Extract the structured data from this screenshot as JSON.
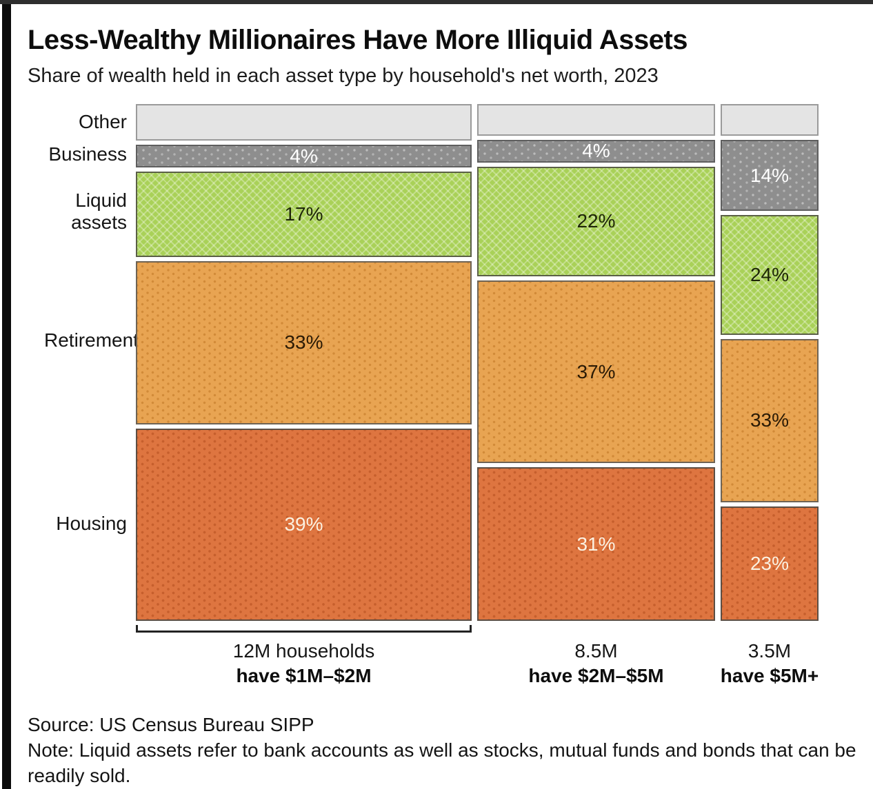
{
  "chart_data": {
    "type": "mosaic",
    "title": "Less-Wealthy Millionaires Have More Illiquid Assets",
    "subtitle": "Share of wealth held in each asset type by household's net worth, 2023",
    "row_labels": [
      "Other",
      "Business",
      "Liquid assets",
      "Retirement",
      "Housing"
    ],
    "unit": "% of wealth",
    "x_weight_unit": "households (millions)",
    "columns": [
      {
        "count_label": "12M households",
        "range_label": "have $1M–$2M",
        "weight": 12,
        "bracket": true,
        "segments": [
          {
            "row": "Other",
            "value": 7,
            "label": ""
          },
          {
            "row": "Business",
            "value": 4,
            "label": "4%"
          },
          {
            "row": "Liquid assets",
            "value": 17,
            "label": "17%"
          },
          {
            "row": "Retirement",
            "value": 33,
            "label": "33%"
          },
          {
            "row": "Housing",
            "value": 39,
            "label": "39%"
          }
        ]
      },
      {
        "count_label": "8.5M",
        "range_label": "have $2M–$5M",
        "weight": 8.5,
        "bracket": false,
        "segments": [
          {
            "row": "Other",
            "value": 6,
            "label": ""
          },
          {
            "row": "Business",
            "value": 4,
            "label": "4%"
          },
          {
            "row": "Liquid assets",
            "value": 22,
            "label": "22%"
          },
          {
            "row": "Retirement",
            "value": 37,
            "label": "37%"
          },
          {
            "row": "Housing",
            "value": 31,
            "label": "31%"
          }
        ]
      },
      {
        "count_label": "3.5M",
        "range_label": "have $5M+",
        "weight": 3.5,
        "bracket": false,
        "segments": [
          {
            "row": "Other",
            "value": 6,
            "label": ""
          },
          {
            "row": "Business",
            "value": 14,
            "label": "14%"
          },
          {
            "row": "Liquid assets",
            "value": 24,
            "label": "24%"
          },
          {
            "row": "Retirement",
            "value": 33,
            "label": "33%"
          },
          {
            "row": "Housing",
            "value": 23,
            "label": "23%"
          }
        ]
      }
    ],
    "colors": {
      "other": "#e4e4e4",
      "business": "#8e8e8e",
      "liquid": "#a9d158",
      "retirement": "#e8a452",
      "housing": "#de7540"
    },
    "source": "Source: US Census Bureau SIPP",
    "note": "Note: Liquid assets refer to bank accounts as well as stocks, mutual funds and bonds that can be readily sold."
  }
}
